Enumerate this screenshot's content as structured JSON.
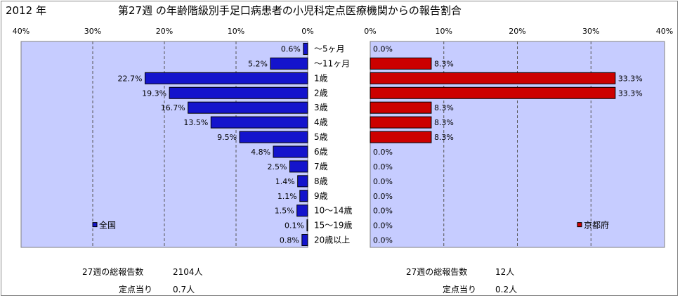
{
  "header": {
    "year": "2012 年",
    "title": "第27週 の年齢階級別手足口病患者の小児科定点医療機関からの報告割合"
  },
  "colors": {
    "plot_bg": "#c6ccff",
    "national_bar": "#1414cc",
    "kyoto_bar": "#cc0000",
    "grid": "#555555"
  },
  "chart_data": [
    {
      "type": "bar",
      "orientation": "horizontal",
      "direction": "right-to-left",
      "legend": "全国",
      "legend_position": "bottom-left",
      "xlim": [
        0,
        40
      ],
      "x_ticks": [
        "40%",
        "30%",
        "20%",
        "10%",
        "0%"
      ],
      "grid": true,
      "categories": [
        "～5ヶ月",
        "～11ヶ月",
        "1歳",
        "2歳",
        "3歳",
        "4歳",
        "5歳",
        "6歳",
        "7歳",
        "8歳",
        "9歳",
        "10～14歳",
        "15～19歳",
        "20歳以上"
      ],
      "values": [
        0.6,
        5.2,
        22.7,
        19.3,
        16.7,
        13.5,
        9.5,
        4.8,
        2.5,
        1.4,
        1.1,
        1.5,
        0.1,
        0.8
      ],
      "labels": [
        "0.6%",
        "5.2%",
        "22.7%",
        "19.3%",
        "16.7%",
        "13.5%",
        "9.5%",
        "4.8%",
        "2.5%",
        "1.4%",
        "1.1%",
        "1.5%",
        "0.1%",
        "0.8%"
      ]
    },
    {
      "type": "bar",
      "orientation": "horizontal",
      "direction": "left-to-right",
      "legend": "京都府",
      "legend_position": "bottom-right",
      "xlim": [
        0,
        40
      ],
      "x_ticks": [
        "0%",
        "10%",
        "20%",
        "30%",
        "40%"
      ],
      "grid": true,
      "categories": [
        "～5ヶ月",
        "～11ヶ月",
        "1歳",
        "2歳",
        "3歳",
        "4歳",
        "5歳",
        "6歳",
        "7歳",
        "8歳",
        "9歳",
        "10～14歳",
        "15～19歳",
        "20歳以上"
      ],
      "values": [
        0.0,
        8.3,
        33.3,
        33.3,
        8.3,
        8.3,
        8.3,
        0.0,
        0.0,
        0.0,
        0.0,
        0.0,
        0.0,
        0.0
      ],
      "labels": [
        "0.0%",
        "8.3%",
        "33.3%",
        "33.3%",
        "8.3%",
        "8.3%",
        "8.3%",
        "0.0%",
        "0.0%",
        "0.0%",
        "0.0%",
        "0.0%",
        "0.0%",
        "0.0%"
      ]
    }
  ],
  "footer": {
    "national_total_label": "27週の総報告数",
    "national_total_value": "2104人",
    "national_per_label": "定点当り",
    "national_per_value": "0.7人",
    "kyoto_total_label": "27週の総報告数",
    "kyoto_total_value": "12人",
    "kyoto_per_label": "定点当り",
    "kyoto_per_value": "0.2人"
  }
}
